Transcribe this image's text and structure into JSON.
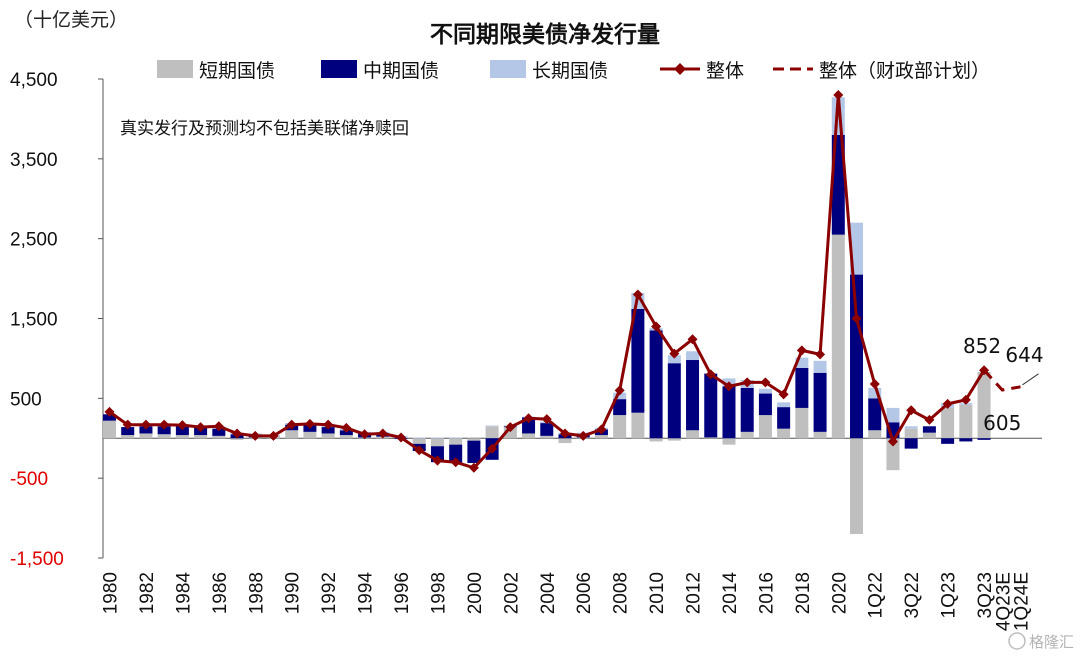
{
  "chart_data": {
    "type": "bar",
    "title": "不同期限美债净发行量",
    "unit_label": "（十亿美元）",
    "note": "真实发行及预测均不包括美联储净赎回",
    "watermark": "格隆汇",
    "ylim": [
      -1500,
      4500
    ],
    "yticks": [
      4500,
      3500,
      2500,
      1500,
      500,
      -500,
      -1500
    ],
    "ytick_labels": [
      "4,500",
      "3,500",
      "2,500",
      "1,500",
      "500",
      "-500",
      "-1,500"
    ],
    "legend": [
      {
        "key": "short",
        "label": "短期国债",
        "color": "#BFBFBF",
        "kind": "bar"
      },
      {
        "key": "mid",
        "label": "中期国债",
        "color": "#00007F",
        "kind": "bar"
      },
      {
        "key": "long",
        "label": "长期国债",
        "color": "#B4C7E7",
        "kind": "bar"
      },
      {
        "key": "total",
        "label": "整体",
        "color": "#8B0000",
        "kind": "line"
      },
      {
        "key": "plan",
        "label": "整体（财政部计划）",
        "color": "#8B0000",
        "kind": "dash"
      }
    ],
    "x_labels": [
      "1980",
      "1982",
      "1984",
      "1986",
      "1988",
      "1990",
      "1992",
      "1994",
      "1996",
      "1998",
      "2000",
      "2002",
      "2004",
      "2006",
      "2008",
      "2010",
      "2012",
      "2014",
      "2016",
      "2018",
      "2020",
      "1Q22",
      "3Q22",
      "1Q23",
      "3Q23",
      "4Q23E",
      "1Q24E"
    ],
    "categories": [
      "1980",
      "1981",
      "1982",
      "1983",
      "1984",
      "1985",
      "1986",
      "1987",
      "1988",
      "1989",
      "1990",
      "1991",
      "1992",
      "1993",
      "1994",
      "1995",
      "1996",
      "1997",
      "1998",
      "1999",
      "2000",
      "2001",
      "2002",
      "2003",
      "2004",
      "2005",
      "2006",
      "2007",
      "2008",
      "2009",
      "2010",
      "2011",
      "2012",
      "2013",
      "2014",
      "2015",
      "2016",
      "2017",
      "2018",
      "2019",
      "2020",
      "2021",
      "1Q22",
      "2Q22",
      "3Q22",
      "4Q22",
      "1Q23",
      "2Q23",
      "3Q23",
      "4Q23E",
      "1Q24E"
    ],
    "series": [
      {
        "key": "short",
        "values": [
          220,
          40,
          60,
          50,
          40,
          40,
          30,
          -20,
          10,
          30,
          100,
          80,
          60,
          40,
          10,
          20,
          10,
          -70,
          -100,
          -80,
          -30,
          150,
          140,
          60,
          30,
          -60,
          10,
          40,
          290,
          320,
          -40,
          -30,
          100,
          10,
          -80,
          80,
          290,
          120,
          380,
          80,
          2550,
          -1200,
          100,
          -400,
          120,
          70,
          380,
          420,
          830,
          null,
          null
        ]
      },
      {
        "key": "mid",
        "values": [
          80,
          100,
          90,
          100,
          110,
          100,
          90,
          50,
          30,
          0,
          70,
          80,
          80,
          60,
          50,
          40,
          -10,
          -90,
          -200,
          -230,
          -280,
          -270,
          10,
          200,
          160,
          50,
          30,
          70,
          200,
          1300,
          1350,
          940,
          880,
          800,
          650,
          550,
          270,
          270,
          500,
          740,
          1250,
          2050,
          400,
          200,
          -130,
          80,
          -70,
          -40,
          -20,
          null,
          null
        ]
      },
      {
        "key": "long",
        "values": [
          0,
          0,
          20,
          20,
          20,
          20,
          30,
          20,
          20,
          10,
          20,
          20,
          20,
          20,
          20,
          20,
          20,
          10,
          10,
          10,
          0,
          10,
          10,
          10,
          20,
          20,
          30,
          20,
          80,
          200,
          30,
          100,
          110,
          0,
          100,
          100,
          60,
          60,
          130,
          150,
          470,
          650,
          130,
          180,
          30,
          0,
          60,
          20,
          0,
          null,
          null
        ]
      },
      {
        "key": "total",
        "values": [
          330,
          170,
          170,
          170,
          165,
          140,
          150,
          60,
          30,
          30,
          170,
          180,
          170,
          130,
          50,
          60,
          10,
          -150,
          -280,
          -300,
          -370,
          -130,
          140,
          250,
          240,
          60,
          30,
          110,
          600,
          1800,
          1400,
          1060,
          1240,
          800,
          650,
          700,
          700,
          550,
          1100,
          1050,
          4300,
          1500,
          680,
          -40,
          350,
          230,
          430,
          480,
          852,
          null,
          null
        ]
      },
      {
        "key": "plan",
        "values": [
          null,
          null,
          null,
          null,
          null,
          null,
          null,
          null,
          null,
          null,
          null,
          null,
          null,
          null,
          null,
          null,
          null,
          null,
          null,
          null,
          null,
          null,
          null,
          null,
          null,
          null,
          null,
          null,
          null,
          null,
          null,
          null,
          null,
          null,
          null,
          null,
          null,
          null,
          null,
          null,
          null,
          null,
          null,
          null,
          null,
          null,
          null,
          null,
          852,
          605,
          644
        ]
      }
    ],
    "annotations": [
      {
        "target": "3Q23",
        "text": "852"
      },
      {
        "target": "4Q23E",
        "text": "605"
      },
      {
        "target": "1Q24E",
        "text": "644"
      }
    ]
  }
}
